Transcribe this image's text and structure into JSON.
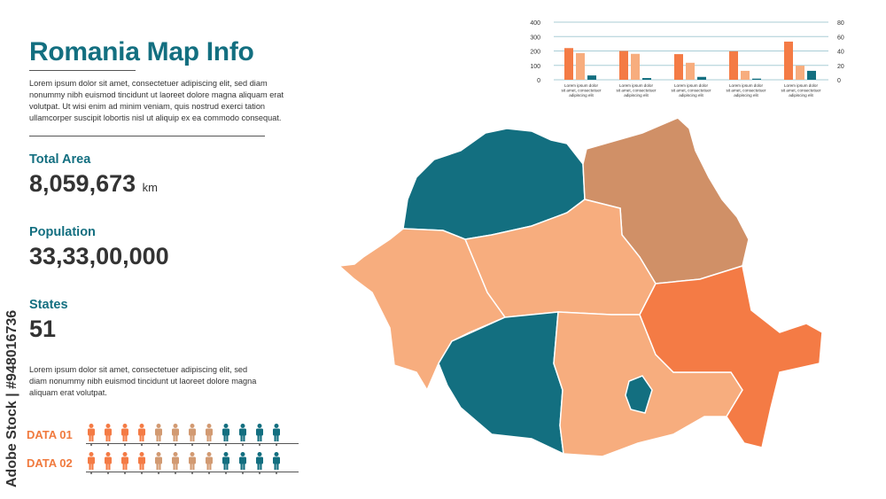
{
  "title": "Romania Map Info",
  "intro": "Lorem ipsum dolor sit amet, consectetuer adipiscing elit, sed diam nonummy nibh euismod tincidunt ut laoreet dolore magna aliquam erat volutpat. Ut wisi enim ad minim veniam, quis nostrud exerci tation ullamcorper suscipit lobortis nisl ut aliquip ex ea commodo consequat.",
  "stats": {
    "area_label": "Total Area",
    "area_value": "8,059,673",
    "area_unit": "km",
    "population_label": "Population",
    "population_value": "33,33,00,000",
    "states_label": "States",
    "states_value": "51"
  },
  "note": "Lorem ipsum dolor sit amet, consectetuer adipiscing elit, sed diam nonummy nibh euismod tincidunt ut laoreet dolore magna aliquam erat volutpat.",
  "data_rows": [
    {
      "label": "DATA 01",
      "counts": {
        "orange": 4,
        "tan": 4,
        "teal": 4
      }
    },
    {
      "label": "DATA 02",
      "counts": {
        "orange": 4,
        "tan": 4,
        "teal": 4
      }
    }
  ],
  "colors": {
    "teal": "#136f80",
    "orange": "#f47b45",
    "peach": "#f7ad7e",
    "brown": "#d09067",
    "tan": "#d29a72"
  },
  "watermark": "Adobe Stock | #948016736",
  "chart_data": {
    "type": "bar",
    "categories": [
      "Lorem ipsum dolor sit amet, consectetuer adipiscing elit",
      "Lorem ipsum dolor sit amet, consectetuer adipiscing elit",
      "Lorem ipsum dolor sit amet, consectetuer adipiscing elit",
      "Lorem ipsum dolor sit amet, consectetuer adipiscing elit",
      "Lorem ipsum dolor sit amet, consectetuer adipiscing elit"
    ],
    "series": [
      {
        "values": [
          220,
          200,
          178,
          198,
          265
        ],
        "color": "#f47b45"
      },
      {
        "values": [
          185,
          180,
          118,
          62,
          98
        ],
        "color": "#f7ad7e"
      },
      {
        "values": [
          30,
          12,
          20,
          8,
          62
        ],
        "color": "#136f80"
      }
    ],
    "ylim": [
      0,
      400
    ],
    "yticks": [
      0,
      100,
      200,
      300,
      400
    ],
    "y2lim": [
      0,
      80
    ],
    "y2ticks": [
      0,
      20,
      40,
      60,
      80
    ],
    "grid": true
  },
  "map": {
    "regions": [
      {
        "name": "northwest",
        "color": "teal"
      },
      {
        "name": "northeast",
        "color": "brown"
      },
      {
        "name": "center",
        "color": "peach"
      },
      {
        "name": "west",
        "color": "peach"
      },
      {
        "name": "southwest",
        "color": "teal"
      },
      {
        "name": "south",
        "color": "peach"
      },
      {
        "name": "southeast",
        "color": "orange"
      },
      {
        "name": "bucharest",
        "color": "teal"
      }
    ]
  }
}
